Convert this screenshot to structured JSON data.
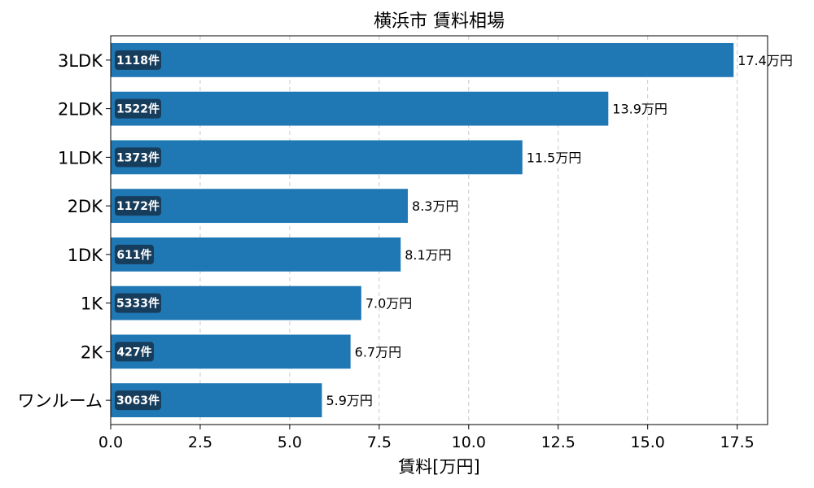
{
  "chart_data": {
    "type": "bar",
    "orientation": "horizontal",
    "title": "横浜市 賃料相場",
    "xlabel": "賃料[万円]",
    "ylabel": "",
    "xlim": [
      0,
      18.35
    ],
    "xticks": [
      0.0,
      2.5,
      5.0,
      7.5,
      10.0,
      12.5,
      15.0,
      17.5
    ],
    "xtick_labels": [
      "0.0",
      "2.5",
      "5.0",
      "7.5",
      "10.0",
      "12.5",
      "15.0",
      "17.5"
    ],
    "grid": "x-dashed",
    "categories": [
      "3LDK",
      "2LDK",
      "1LDK",
      "2DK",
      "1DK",
      "1K",
      "2K",
      "ワンルーム"
    ],
    "values": [
      17.4,
      13.9,
      11.5,
      8.3,
      8.1,
      7.0,
      6.7,
      5.9
    ],
    "value_labels": [
      "17.4万円",
      "13.9万円",
      "11.5万円",
      "8.3万円",
      "8.1万円",
      "7.0万円",
      "6.7万円",
      "5.9万円"
    ],
    "counts": [
      1118,
      1522,
      1373,
      1172,
      611,
      5333,
      427,
      3063
    ],
    "count_labels": [
      "1118件",
      "1522件",
      "1373件",
      "1172件",
      "611件",
      "5333件",
      "427件",
      "3063件"
    ],
    "bar_color": "#1f77b4",
    "count_badge_color": "#173d5c"
  }
}
